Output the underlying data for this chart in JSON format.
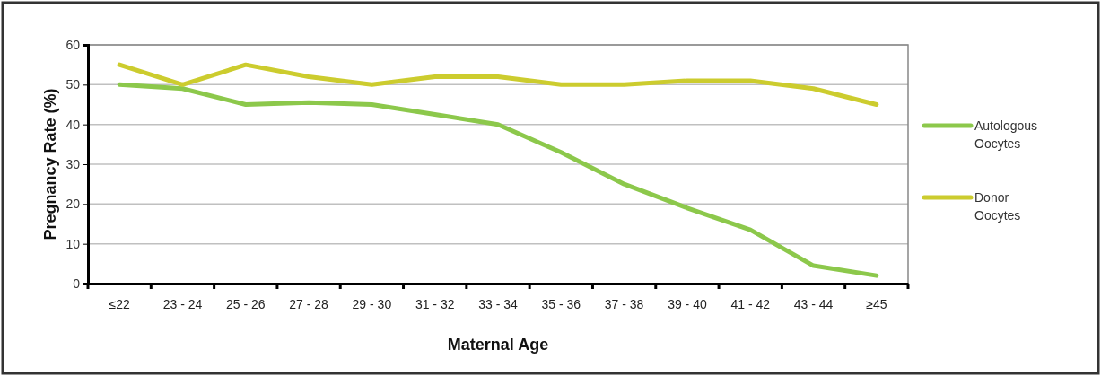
{
  "chart_data": {
    "type": "line",
    "xlabel": "Maternal Age",
    "ylabel": "Pregnancy Rate (%)",
    "categories": [
      "≤22",
      "23 - 24",
      "25 - 26",
      "27 - 28",
      "29 - 30",
      "31 - 32",
      "33 - 34",
      "35 - 36",
      "37 - 38",
      "39 - 40",
      "41 - 42",
      "43 - 44",
      "≥45"
    ],
    "series": [
      {
        "name": "Autologous Oocytes",
        "color": "#8cc84b",
        "values": [
          50,
          49,
          45,
          45.5,
          45,
          42.5,
          40,
          33,
          25,
          19,
          13.5,
          4.5,
          2
        ]
      },
      {
        "name": "Donor Oocytes",
        "color": "#cccc2e",
        "values": [
          55,
          50,
          55,
          52,
          50,
          52,
          52,
          50,
          50,
          51,
          51,
          49,
          45
        ]
      }
    ],
    "ylim": [
      0,
      60
    ],
    "yticks": [
      0,
      10,
      20,
      30,
      40,
      50,
      60
    ],
    "grid": "y",
    "legend": "right",
    "marker": "none",
    "line_style": "solid"
  }
}
